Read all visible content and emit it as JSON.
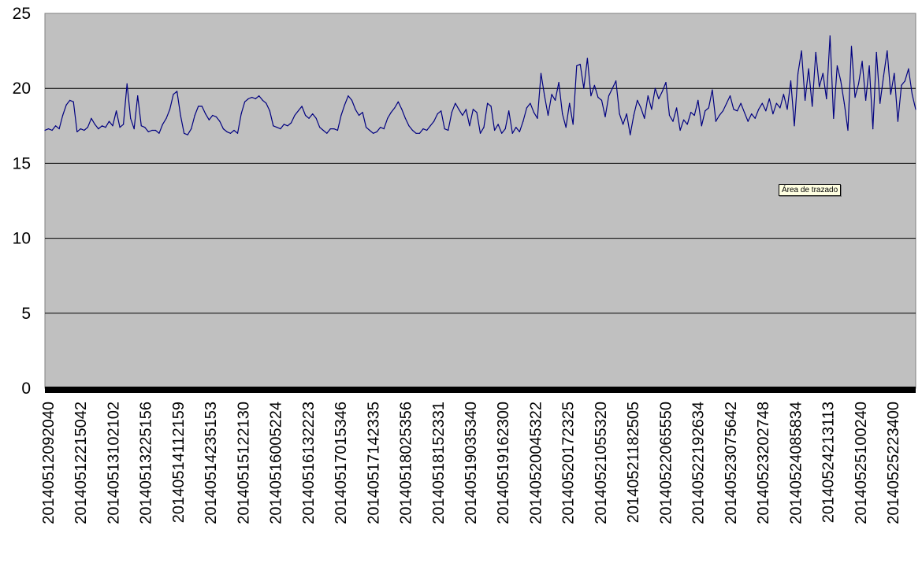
{
  "chart_data": {
    "type": "line",
    "title": "",
    "xlabel": "",
    "ylabel": "",
    "ylim": [
      0,
      25
    ],
    "yticks": [
      0,
      5,
      10,
      15,
      20,
      25
    ],
    "grid": true,
    "legend": "none",
    "colors": {
      "plot_background": "#c0c0c0",
      "line": "#000080",
      "gridline": "#000000",
      "baseline": "#000000"
    },
    "x_tick_labels": [
      "20140512092040",
      "20140512215042",
      "20140513102102",
      "20140513225156",
      "20140514112159",
      "20140514235153",
      "20140515122130",
      "20140516005224",
      "20140516132223",
      "20140517015346",
      "20140517142335",
      "20140518025356",
      "20140518152331",
      "20140519035340",
      "20140519162300",
      "20140520045322",
      "20140520172325",
      "20140521055320",
      "20140521182505",
      "20140522065550",
      "20140522192634",
      "20140523075642",
      "20140523202748",
      "20140524085834",
      "20140524213113",
      "20140525100240",
      "20140525223400"
    ],
    "series": [
      {
        "values": [
          17.2,
          17.3,
          17.2,
          17.5,
          17.3,
          18.2,
          18.9,
          19.2,
          19.1,
          17.1,
          17.3,
          17.2,
          17.4,
          18.0,
          17.6,
          17.3,
          17.5,
          17.4,
          17.8,
          17.5,
          18.5,
          17.4,
          17.6,
          20.3,
          18.0,
          17.3,
          19.5,
          17.5,
          17.4,
          17.1,
          17.2,
          17.2,
          17.0,
          17.6,
          18.0,
          18.6,
          19.6,
          19.8,
          18.2,
          17.0,
          16.9,
          17.3,
          18.2,
          18.8,
          18.8,
          18.3,
          17.9,
          18.2,
          18.1,
          17.8,
          17.3,
          17.1,
          17.0,
          17.2,
          17.0,
          18.3,
          19.1,
          19.3,
          19.4,
          19.3,
          19.5,
          19.2,
          19.0,
          18.5,
          17.5,
          17.4,
          17.3,
          17.6,
          17.5,
          17.7,
          18.2,
          18.5,
          18.8,
          18.2,
          18.0,
          18.3,
          18.0,
          17.4,
          17.2,
          17.0,
          17.3,
          17.3,
          17.2,
          18.2,
          18.9,
          19.5,
          19.2,
          18.6,
          18.2,
          18.4,
          17.4,
          17.2,
          17.0,
          17.1,
          17.4,
          17.3,
          18.0,
          18.4,
          18.7,
          19.1,
          18.6,
          18.0,
          17.5,
          17.2,
          17.0,
          17.0,
          17.3,
          17.2,
          17.5,
          17.8,
          18.3,
          18.5,
          17.3,
          17.2,
          18.4,
          19.0,
          18.6,
          18.2,
          18.6,
          17.5,
          18.6,
          18.4,
          17.0,
          17.4,
          19.0,
          18.8,
          17.2,
          17.6,
          17.0,
          17.3,
          18.5,
          17.0,
          17.4,
          17.1,
          17.8,
          18.7,
          19.0,
          18.4,
          18.0,
          21.0,
          19.5,
          18.2,
          19.6,
          19.2,
          20.4,
          18.3,
          17.4,
          19.0,
          17.6,
          21.5,
          21.6,
          20.0,
          22.0,
          19.5,
          20.2,
          19.4,
          19.2,
          18.1,
          19.5,
          20.0,
          20.5,
          18.3,
          17.6,
          18.3,
          16.9,
          18.2,
          19.2,
          18.7,
          18.0,
          19.5,
          18.6,
          20.0,
          19.3,
          19.8,
          20.4,
          18.2,
          17.8,
          18.7,
          17.2,
          17.9,
          17.6,
          18.4,
          18.2,
          19.2,
          17.5,
          18.5,
          18.7,
          19.9,
          17.8,
          18.2,
          18.5,
          19.0,
          19.5,
          18.6,
          18.5,
          19.0,
          18.4,
          17.8,
          18.3,
          18.0,
          18.6,
          19.0,
          18.5,
          19.3,
          18.3,
          19.0,
          18.7,
          19.6,
          18.6,
          20.5,
          17.5,
          21.0,
          22.5,
          19.2,
          21.3,
          18.8,
          22.4,
          20.1,
          21.0,
          19.3,
          23.5,
          18.0,
          21.5,
          20.5,
          19.0,
          17.2,
          22.8,
          19.4,
          20.3,
          21.8,
          19.2,
          21.5,
          17.3,
          22.4,
          19.0,
          20.8,
          22.5,
          19.6,
          21.0,
          17.8,
          20.2,
          20.5,
          21.3,
          19.6,
          18.6
        ]
      }
    ]
  },
  "tooltip": {
    "text": "Área de trazado"
  }
}
